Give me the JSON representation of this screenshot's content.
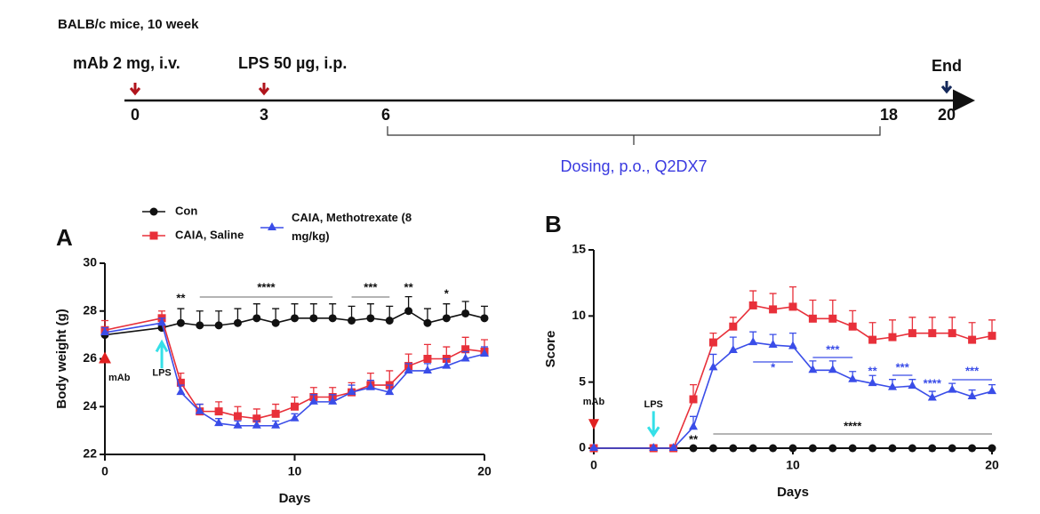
{
  "timeline": {
    "subject": "BALB/c mice,  10 week",
    "mab_dose": "mAb 2 mg,  i.v.",
    "lps_dose": "LPS 50 µg,  i.p.",
    "end": "End",
    "days": [
      "0",
      "3",
      "6",
      "18",
      "20"
    ],
    "dosing": "Dosing,  p.o., Q2DX7"
  },
  "chart_data": [
    {
      "type": "line",
      "panel_label": "A",
      "x_label": "Days",
      "y_label": "Body weight (g)",
      "x": [
        0,
        3,
        4,
        5,
        6,
        7,
        8,
        9,
        10,
        11,
        12,
        13,
        14,
        15,
        16,
        17,
        18,
        19,
        20
      ],
      "xlim": [
        0,
        20
      ],
      "xticks": [
        0,
        10,
        20
      ],
      "ylim": [
        22,
        30
      ],
      "yticks": [
        22,
        24,
        26,
        28,
        30
      ],
      "series": [
        {
          "name": "Con",
          "color": "#111111",
          "marker": "circle",
          "values": [
            27.0,
            27.3,
            27.5,
            27.4,
            27.4,
            27.5,
            27.7,
            27.5,
            27.7,
            27.7,
            27.7,
            27.6,
            27.7,
            27.6,
            28.0,
            27.5,
            27.7,
            27.9,
            27.7
          ],
          "errors": [
            0.3,
            0.3,
            0.6,
            0.6,
            0.6,
            0.6,
            0.6,
            0.6,
            0.6,
            0.6,
            0.6,
            0.6,
            0.6,
            0.6,
            0.6,
            0.6,
            0.6,
            0.5,
            0.5
          ]
        },
        {
          "name": "CAIA, Saline",
          "color": "#e8303a",
          "marker": "square",
          "values": [
            27.2,
            27.7,
            25.0,
            23.8,
            23.8,
            23.6,
            23.5,
            23.7,
            24.0,
            24.4,
            24.4,
            24.6,
            24.9,
            24.9,
            25.7,
            26.0,
            26.0,
            26.4,
            26.3
          ],
          "errors": [
            0.4,
            0.3,
            0.4,
            0.3,
            0.4,
            0.4,
            0.4,
            0.4,
            0.4,
            0.4,
            0.4,
            0.4,
            0.5,
            0.6,
            0.5,
            0.6,
            0.5,
            0.5,
            0.5
          ]
        },
        {
          "name": "CAIA, Methotrexate (8 mg/kg)",
          "color": "#3a4de8",
          "marker": "triangle",
          "values": [
            27.1,
            27.5,
            24.6,
            23.8,
            23.3,
            23.2,
            23.2,
            23.2,
            23.5,
            24.2,
            24.2,
            24.6,
            24.8,
            24.6,
            25.5,
            25.5,
            25.7,
            26.0,
            26.2
          ],
          "errors": [
            0.2,
            0.2,
            0.3,
            0.3,
            0.2,
            0.2,
            0.2,
            0.2,
            0.2,
            0.3,
            0.3,
            0.3,
            0.3,
            0.3,
            0.3,
            0.3,
            0.3,
            0.3,
            0.3
          ]
        }
      ],
      "annotations": [
        {
          "text": "**",
          "x": 4,
          "color": "#111111"
        },
        {
          "text": "****",
          "x": [
            5,
            12
          ],
          "color": "#111111"
        },
        {
          "text": "***",
          "x": [
            13,
            15
          ],
          "color": "#111111"
        },
        {
          "text": "**",
          "x": 16,
          "color": "#111111"
        },
        {
          "text": "*",
          "x": 18,
          "color": "#111111"
        }
      ],
      "events": [
        {
          "text": "mAb",
          "x": 0,
          "color": "#e02020"
        },
        {
          "text": "LPS",
          "x": 3,
          "color": "#35e0e8"
        }
      ]
    },
    {
      "type": "line",
      "panel_label": "B",
      "x_label": "Days",
      "y_label": "Score",
      "x": [
        0,
        3,
        4,
        5,
        6,
        7,
        8,
        9,
        10,
        11,
        12,
        13,
        14,
        15,
        16,
        17,
        18,
        19,
        20
      ],
      "xlim": [
        0,
        20
      ],
      "xticks": [
        0,
        10,
        20
      ],
      "ylim": [
        0,
        15
      ],
      "yticks": [
        0,
        5,
        10,
        15
      ],
      "series": [
        {
          "name": "Con",
          "color": "#111111",
          "marker": "circle",
          "values": [
            0,
            0,
            0,
            0,
            0,
            0,
            0,
            0,
            0,
            0,
            0,
            0,
            0,
            0,
            0,
            0,
            0,
            0,
            0
          ],
          "errors": [
            0,
            0,
            0,
            0,
            0,
            0,
            0,
            0,
            0,
            0,
            0,
            0,
            0,
            0,
            0,
            0,
            0,
            0,
            0
          ]
        },
        {
          "name": "CAIA, Saline",
          "color": "#e8303a",
          "marker": "square",
          "values": [
            0,
            0,
            0,
            3.7,
            8.0,
            9.2,
            10.8,
            10.5,
            10.7,
            9.8,
            9.8,
            9.2,
            8.2,
            8.4,
            8.7,
            8.7,
            8.7,
            8.2,
            8.5
          ],
          "errors": [
            0,
            0,
            0,
            1.1,
            0.7,
            0.7,
            1.1,
            1.2,
            1.5,
            1.4,
            1.4,
            1.2,
            1.3,
            1.3,
            1.2,
            1.2,
            1.2,
            1.3,
            1.2
          ]
        },
        {
          "name": "CAIA, Methotrexate (8 mg/kg)",
          "color": "#3a4de8",
          "marker": "triangle",
          "values": [
            0,
            0,
            0,
            1.6,
            6.1,
            7.4,
            8.0,
            7.8,
            7.7,
            5.9,
            5.9,
            5.2,
            4.9,
            4.6,
            4.7,
            3.8,
            4.4,
            3.9,
            4.3
          ],
          "errors": [
            0,
            0,
            0,
            0.8,
            1.0,
            1.0,
            0.8,
            0.8,
            1.0,
            0.7,
            0.7,
            0.6,
            0.6,
            0.6,
            0.5,
            0.5,
            0.5,
            0.5,
            0.5
          ]
        }
      ],
      "annotations": [
        {
          "text": "**",
          "x": 5,
          "color": "#111111"
        },
        {
          "text": "****",
          "x": [
            6,
            20
          ],
          "color": "#111111"
        },
        {
          "text": "*",
          "x": [
            8,
            10
          ],
          "color": "#3a4de8"
        },
        {
          "text": "***",
          "x": [
            11,
            13
          ],
          "color": "#3a4de8"
        },
        {
          "text": "**",
          "x": 14,
          "color": "#3a4de8"
        },
        {
          "text": "***",
          "x": [
            15,
            16
          ],
          "color": "#3a4de8"
        },
        {
          "text": "****",
          "x": 17,
          "color": "#3a4de8"
        },
        {
          "text": "***",
          "x": [
            18,
            20
          ],
          "color": "#3a4de8"
        }
      ],
      "events": [
        {
          "text": "mAb",
          "x": 0,
          "color": "#e02020"
        },
        {
          "text": "LPS",
          "x": 3,
          "color": "#35e0e8"
        }
      ]
    }
  ]
}
